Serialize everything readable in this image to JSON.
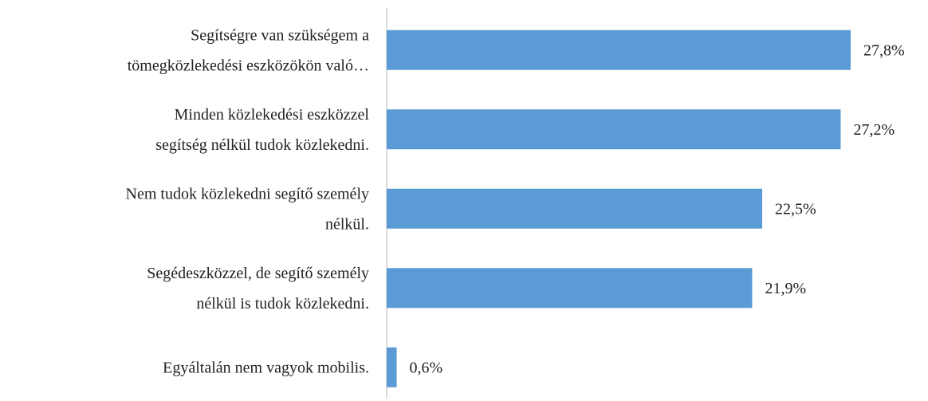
{
  "chart_data": {
    "type": "bar",
    "orientation": "horizontal",
    "categories": [
      [
        "Segítségre van szükségem a",
        "tömegközlekedési eszközökön való…"
      ],
      [
        "Minden közlekedési eszközzel",
        "segítség nélkül tudok közlekedni."
      ],
      [
        "Nem tudok közlekedni segítő személy",
        "nélkül."
      ],
      [
        "Segédeszközzel, de segítő személy",
        "nélkül is tudok közlekedni."
      ],
      [
        "Egyáltalán nem vagyok mobilis."
      ]
    ],
    "values": [
      27.8,
      27.2,
      22.5,
      21.9,
      0.6
    ],
    "value_labels": [
      "27,8%",
      "27,2%",
      "22,5%",
      "21,9%",
      "0,6%"
    ],
    "color": "#5b9bd5"
  }
}
